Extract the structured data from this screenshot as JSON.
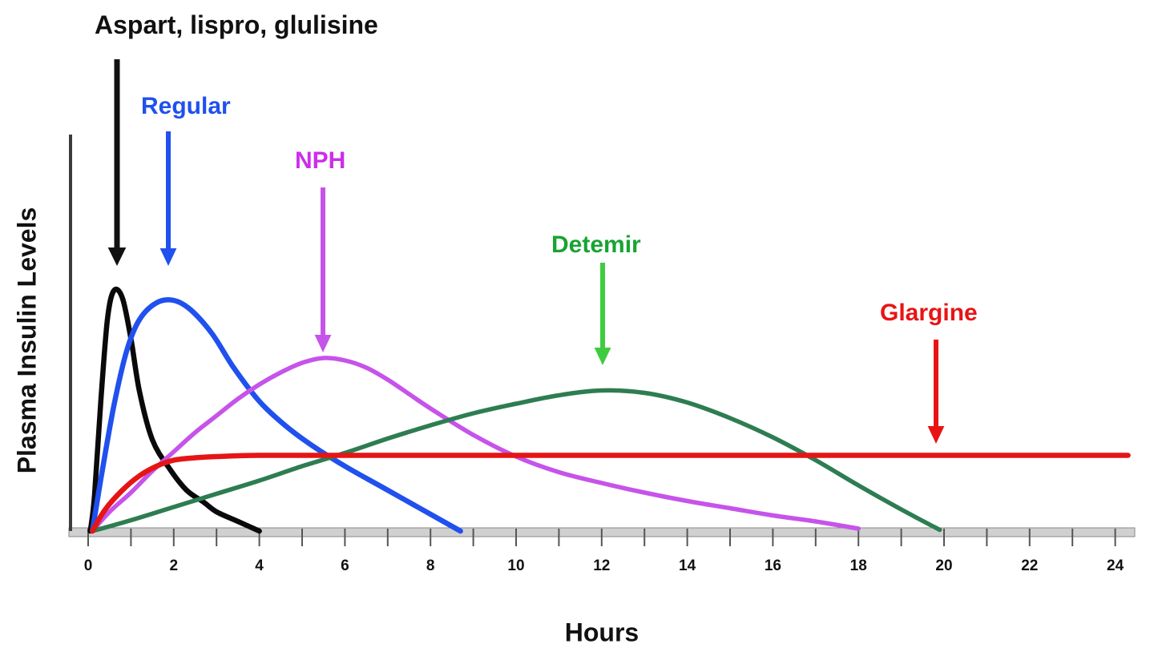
{
  "chart_data": {
    "type": "line",
    "title": "",
    "xlabel": "Hours",
    "ylabel": "Plasma Insulin Levels",
    "xlim": [
      0,
      24
    ],
    "ylim": [
      0,
      1.1
    ],
    "x_major_ticks": [
      0,
      2,
      4,
      6,
      8,
      10,
      12,
      14,
      16,
      18,
      20,
      22,
      24
    ],
    "x_minor_tick_step": 1,
    "grid": false,
    "legend_position": "none (direct curve labels with arrows)",
    "series": [
      {
        "name": "Aspart, lispro, glulisine",
        "color": "#0a0a0a",
        "stroke_width": 6.5,
        "peak_hours": 0.6,
        "duration_hours": 4,
        "points": [
          [
            0.05,
            0
          ],
          [
            0.15,
            0.15
          ],
          [
            0.3,
            0.55
          ],
          [
            0.45,
            0.88
          ],
          [
            0.6,
            1.0
          ],
          [
            0.8,
            0.97
          ],
          [
            1.0,
            0.8
          ],
          [
            1.2,
            0.58
          ],
          [
            1.5,
            0.38
          ],
          [
            1.9,
            0.26
          ],
          [
            2.3,
            0.17
          ],
          [
            2.7,
            0.12
          ],
          [
            3.0,
            0.08
          ],
          [
            3.5,
            0.04
          ],
          [
            4.0,
            0.0
          ]
        ]
      },
      {
        "name": "Regular",
        "color": "#2050ee",
        "stroke_width": 6.5,
        "peak_hours": 2,
        "duration_hours": 8.7,
        "points": [
          [
            0.1,
            0
          ],
          [
            0.3,
            0.22
          ],
          [
            0.6,
            0.52
          ],
          [
            0.9,
            0.75
          ],
          [
            1.2,
            0.88
          ],
          [
            1.6,
            0.95
          ],
          [
            2.0,
            0.96
          ],
          [
            2.4,
            0.92
          ],
          [
            2.9,
            0.82
          ],
          [
            3.4,
            0.68
          ],
          [
            4.0,
            0.54
          ],
          [
            4.6,
            0.44
          ],
          [
            5.2,
            0.36
          ],
          [
            6.0,
            0.27
          ],
          [
            6.8,
            0.19
          ],
          [
            7.6,
            0.11
          ],
          [
            8.3,
            0.04
          ],
          [
            8.7,
            0
          ]
        ]
      },
      {
        "name": "NPH",
        "color": "#c653ea",
        "stroke_width": 5.5,
        "peak_hours": 5.5,
        "duration_hours": 18,
        "points": [
          [
            0.1,
            0
          ],
          [
            0.5,
            0.08
          ],
          [
            1,
            0.16
          ],
          [
            1.5,
            0.25
          ],
          [
            2,
            0.33
          ],
          [
            2.5,
            0.41
          ],
          [
            3,
            0.48
          ],
          [
            3.5,
            0.55
          ],
          [
            4,
            0.61
          ],
          [
            4.5,
            0.66
          ],
          [
            5,
            0.7
          ],
          [
            5.5,
            0.72
          ],
          [
            6,
            0.71
          ],
          [
            6.5,
            0.68
          ],
          [
            7,
            0.63
          ],
          [
            7.5,
            0.57
          ],
          [
            8,
            0.51
          ],
          [
            9,
            0.4
          ],
          [
            10,
            0.31
          ],
          [
            11,
            0.245
          ],
          [
            12,
            0.2
          ],
          [
            13,
            0.16
          ],
          [
            14,
            0.125
          ],
          [
            15,
            0.095
          ],
          [
            16,
            0.065
          ],
          [
            17,
            0.04
          ],
          [
            18,
            0.01
          ]
        ]
      },
      {
        "name": "Detemir",
        "color": "#2e7d52",
        "stroke_width": 5.5,
        "peak_hours": 12,
        "duration_hours": 20,
        "points": [
          [
            0.1,
            0
          ],
          [
            1,
            0.045
          ],
          [
            2,
            0.1
          ],
          [
            3,
            0.155
          ],
          [
            4,
            0.21
          ],
          [
            5,
            0.27
          ],
          [
            6,
            0.325
          ],
          [
            7,
            0.385
          ],
          [
            8,
            0.44
          ],
          [
            9,
            0.49
          ],
          [
            10,
            0.53
          ],
          [
            11,
            0.565
          ],
          [
            12,
            0.585
          ],
          [
            13,
            0.575
          ],
          [
            14,
            0.535
          ],
          [
            15,
            0.47
          ],
          [
            16,
            0.39
          ],
          [
            17,
            0.295
          ],
          [
            18,
            0.19
          ],
          [
            19,
            0.09
          ],
          [
            19.9,
            0.005
          ]
        ]
      },
      {
        "name": "Glargine",
        "color": "#e61515",
        "stroke_width": 6.5,
        "peak_hours": null,
        "duration_hours": 24,
        "points": [
          [
            0.1,
            0
          ],
          [
            0.4,
            0.09
          ],
          [
            0.8,
            0.17
          ],
          [
            1.2,
            0.23
          ],
          [
            1.6,
            0.27
          ],
          [
            2.0,
            0.295
          ],
          [
            2.5,
            0.305
          ],
          [
            3.0,
            0.31
          ],
          [
            4.0,
            0.315
          ],
          [
            6,
            0.315
          ],
          [
            8,
            0.315
          ],
          [
            10,
            0.315
          ],
          [
            12,
            0.315
          ],
          [
            14,
            0.315
          ],
          [
            16,
            0.315
          ],
          [
            18,
            0.315
          ],
          [
            20,
            0.315
          ],
          [
            22,
            0.315
          ],
          [
            24.3,
            0.315
          ]
        ]
      }
    ],
    "annotations": [
      {
        "label": "Aspart, lispro, glulisine",
        "color": "#111111",
        "arrow_color": "#111111",
        "points_to_hours": 0.7
      },
      {
        "label": "Regular",
        "color": "#2050ee",
        "arrow_color": "#2050ee",
        "points_to_hours": 1.9
      },
      {
        "label": "NPH",
        "color": "#cb2fe8",
        "arrow_color": "#c653ea",
        "points_to_hours": 5.5
      },
      {
        "label": "Detemir",
        "color": "#18a432",
        "arrow_color": "#3ecc3e",
        "points_to_hours": 12
      },
      {
        "label": "Glargine",
        "color": "#e81414",
        "arrow_color": "#e81414",
        "points_to_hours": 19.8
      }
    ],
    "axis_colors": {
      "axis_line": "#3c3c3c",
      "tick_band": "#d0d0d0",
      "tick_band_border": "#8a8a8a",
      "tick_mark": "#555555",
      "tick_label": "#111111"
    }
  }
}
